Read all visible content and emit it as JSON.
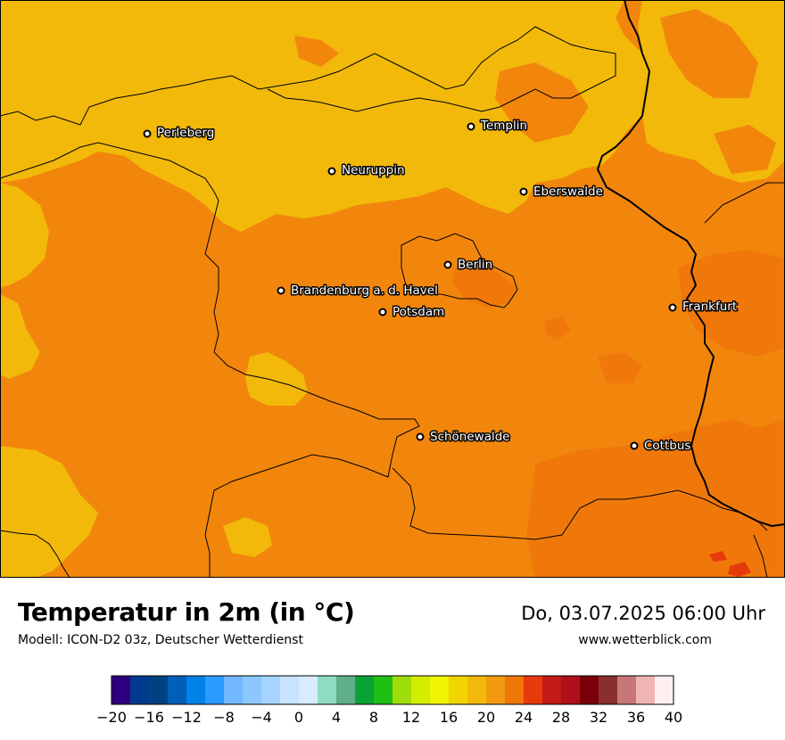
{
  "title": "Temperatur in 2m (in °C)",
  "model": "Modell: ICON-D2 03z, Deutscher Wetterdienst",
  "datetime": "Do, 03.07.2025 06:00 Uhr",
  "website": "www.wetterblick.com",
  "cities": [
    {
      "name": "Perleberg"
    },
    {
      "name": "Templin"
    },
    {
      "name": "Neuruppin"
    },
    {
      "name": "Eberswalde"
    },
    {
      "name": "Berlin"
    },
    {
      "name": "Brandenburg a. d. Havel"
    },
    {
      "name": "Potsdam"
    },
    {
      "name": "Frankfurt"
    },
    {
      "name": "Schönewalde"
    },
    {
      "name": "Cottbus"
    }
  ],
  "legend": {
    "colors": [
      "#2e007f",
      "#003a8c",
      "#00427f",
      "#005fb8",
      "#0082e6",
      "#2b9cff",
      "#73b8ff",
      "#8cc8ff",
      "#a6d3ff",
      "#c8e3ff",
      "#d9ecff",
      "#8fdcc4",
      "#5fb08a",
      "#0aa235",
      "#1fbf16",
      "#9fdc0b",
      "#d4ec00",
      "#f0f400",
      "#f2d400",
      "#f2b90a",
      "#f19a10",
      "#f0780b",
      "#e73a0c",
      "#c41a18",
      "#b0101a",
      "#7a0008",
      "#8a2f2f",
      "#c97676",
      "#f0b4b4",
      "#fff0f0"
    ],
    "tick_labels": [
      "−20",
      "−16",
      "−12",
      "−8",
      "−4",
      "0",
      "4",
      "8",
      "12",
      "16",
      "20",
      "24",
      "28",
      "32",
      "36",
      "40"
    ]
  }
}
